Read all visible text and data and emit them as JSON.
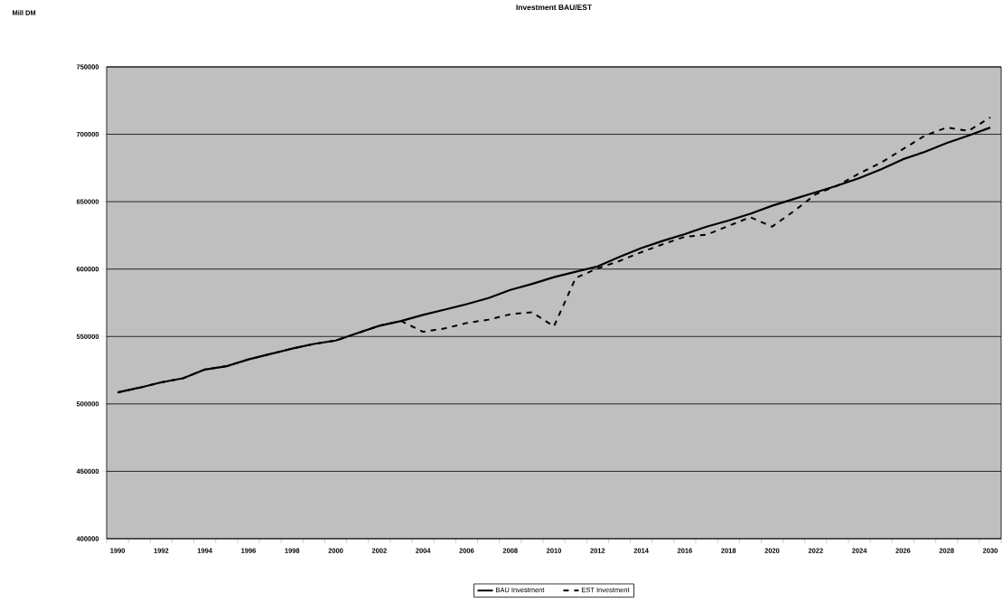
{
  "chart_data": {
    "type": "line",
    "title": "Investment BAU/EST",
    "annotations": [
      "Mill DM"
    ],
    "categories": [
      "1990",
      null,
      "1992",
      null,
      "1994",
      null,
      "1996",
      null,
      "1998",
      null,
      "2000",
      null,
      "2002",
      null,
      "2004",
      null,
      "2006",
      null,
      "2008",
      null,
      "2010",
      null,
      "2012",
      null,
      "2014",
      null,
      "2016",
      null,
      "2018",
      null,
      "2020",
      null,
      "2022",
      null,
      "2024",
      null,
      "2026",
      null,
      "2028",
      null,
      "2030"
    ],
    "series": [
      {
        "name": "BAU Investment",
        "color": "#000000",
        "line_style": "solid",
        "values": [
          508500,
          512000,
          516000,
          519000,
          525500,
          528000,
          533000,
          537000,
          541000,
          544500,
          547000,
          552500,
          558000,
          561500,
          566000,
          570000,
          574000,
          578500,
          584500,
          589000,
          594000,
          598000,
          602000,
          609000,
          615500,
          621000,
          626000,
          631500,
          636000,
          641000,
          647000,
          652000,
          657000,
          662000,
          667500,
          674000,
          681500,
          687000,
          693500,
          699000,
          705000
        ]
      },
      {
        "name": "EST Investment",
        "color": "#000000",
        "line_style": "dashed",
        "values": [
          508500,
          512000,
          516000,
          519000,
          525500,
          528000,
          533000,
          537000,
          541000,
          544500,
          547000,
          552500,
          558000,
          561500,
          553500,
          556000,
          560000,
          562500,
          566500,
          568000,
          557500,
          593500,
          600500,
          606000,
          612500,
          618500,
          624000,
          625500,
          632000,
          638500,
          631500,
          643000,
          655500,
          662000,
          671000,
          679000,
          689000,
          699000,
          705000,
          702500,
          712500
        ]
      }
    ],
    "ylim": [
      400000,
      750000
    ],
    "yticks": [
      400000,
      450000,
      500000,
      550000,
      600000,
      650000,
      700000,
      750000
    ],
    "grid": "y",
    "legend": "bottom"
  }
}
